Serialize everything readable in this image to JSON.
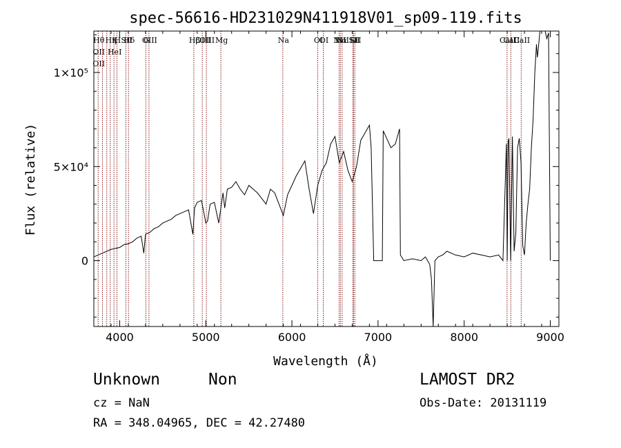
{
  "chart_data": {
    "type": "line",
    "title": "spec-56616-HD231029N411918V01_sp09-119.fits",
    "xlabel": "Wavelength (Å)",
    "ylabel": "Flux (relative)",
    "xlim": [
      3700,
      9100
    ],
    "ylim": [
      -35000,
      122000
    ],
    "x_ticks": [
      4000,
      5000,
      6000,
      7000,
      8000,
      9000
    ],
    "x_tick_labels": [
      "4000",
      "5000",
      "6000",
      "7000",
      "8000",
      "9000"
    ],
    "y_ticks": [
      0,
      50000,
      100000
    ],
    "y_tick_labels": [
      "0",
      "5×10⁴",
      "1×10⁵"
    ],
    "grid": false,
    "series": [
      {
        "line_color": "#000000",
        "x": [
          3700,
          3750,
          3800,
          3850,
          3900,
          3950,
          4000,
          4050,
          4100,
          4150,
          4200,
          4250,
          4280,
          4300,
          4350,
          4400,
          4450,
          4500,
          4550,
          4600,
          4650,
          4700,
          4750,
          4800,
          4850,
          4870,
          4900,
          4950,
          5000,
          5020,
          5050,
          5100,
          5150,
          5200,
          5220,
          5250,
          5300,
          5350,
          5400,
          5450,
          5500,
          5550,
          5600,
          5650,
          5700,
          5750,
          5800,
          5850,
          5900,
          5950,
          6000,
          6050,
          6100,
          6150,
          6200,
          6250,
          6300,
          6350,
          6400,
          6450,
          6500,
          6550,
          6600,
          6650,
          6700,
          6750,
          6800,
          6850,
          6900,
          6920,
          6950,
          6960,
          7050,
          7060,
          7100,
          7150,
          7200,
          7250,
          7260,
          7300,
          7400,
          7500,
          7550,
          7600,
          7620,
          7640,
          7660,
          7700,
          7750,
          7800,
          7900,
          8000,
          8100,
          8200,
          8300,
          8400,
          8450,
          8490,
          8500,
          8510,
          8520,
          8540,
          8560,
          8580,
          8600,
          8620,
          8640,
          8660,
          8680,
          8700,
          8720,
          8740,
          8760,
          8780,
          8800,
          8820,
          8840,
          8850,
          8860,
          8880,
          8900,
          8920,
          8940,
          8960,
          8980,
          9000
        ],
        "y": [
          2000,
          3000,
          4000,
          5000,
          6000,
          6500,
          7000,
          8500,
          9000,
          10000,
          12000,
          13000,
          4000,
          14000,
          15000,
          17000,
          18000,
          20000,
          21000,
          22000,
          24000,
          25000,
          26000,
          27000,
          14000,
          28000,
          31000,
          32000,
          20000,
          21000,
          30000,
          31000,
          20000,
          36000,
          28000,
          38000,
          39000,
          42000,
          38000,
          35000,
          40000,
          38000,
          36000,
          33000,
          30000,
          38000,
          36000,
          30000,
          24000,
          35000,
          40000,
          45000,
          49000,
          53000,
          38000,
          25000,
          40000,
          48000,
          52000,
          62000,
          66000,
          52000,
          58000,
          48000,
          42000,
          50000,
          64000,
          68000,
          72000,
          60000,
          0,
          0,
          0,
          69000,
          65000,
          60000,
          62000,
          70000,
          3000,
          0,
          1000,
          0,
          2000,
          -2000,
          -10000,
          -35000,
          0,
          2000,
          3000,
          5000,
          3000,
          2000,
          4000,
          3000,
          2000,
          3000,
          0,
          62000,
          0,
          63000,
          65000,
          0,
          66000,
          5000,
          15000,
          60000,
          65000,
          52000,
          8000,
          3000,
          20000,
          30000,
          38000,
          60000,
          75000,
          100000,
          115000,
          108000,
          112000,
          125000,
          122000,
          130000,
          125000,
          118000,
          121000,
          0
        ]
      }
    ],
    "annotations": {
      "lines": [
        {
          "x": 3750,
          "labels": [
            "Hθ",
            "OII",
            "OII"
          ]
        },
        {
          "x": 3800,
          "labels": []
        },
        {
          "x": 3850,
          "labels": []
        },
        {
          "x": 3890,
          "labels": [
            "Hη"
          ]
        },
        {
          "x": 3934,
          "labels": [
            "K",
            "HeI"
          ]
        },
        {
          "x": 3968,
          "labels": [
            "H"
          ]
        },
        {
          "x": 4072,
          "labels": [
            "SII"
          ]
        },
        {
          "x": 4102,
          "labels": [
            "Hδ"
          ]
        },
        {
          "x": 4304,
          "labels": [
            "G"
          ]
        },
        {
          "x": 4340,
          "labels": [
            "OIII"
          ]
        },
        {
          "x": 4861,
          "labels": [
            "Hβ"
          ]
        },
        {
          "x": 4959,
          "labels": [
            "OIII"
          ]
        },
        {
          "x": 5007,
          "labels": [
            "OIII"
          ]
        },
        {
          "x": 5175,
          "labels": [
            "Mg"
          ]
        },
        {
          "x": 5894,
          "labels": [
            "Na"
          ]
        },
        {
          "x": 6300,
          "labels": [
            "OI"
          ]
        },
        {
          "x": 6364,
          "labels": [
            "OI"
          ]
        },
        {
          "x": 6548,
          "labels": [
            "NII"
          ]
        },
        {
          "x": 6563,
          "labels": [
            "Hα"
          ]
        },
        {
          "x": 6583,
          "labels": [
            "NII"
          ]
        },
        {
          "x": 6707,
          "labels": [
            "Li"
          ]
        },
        {
          "x": 6716,
          "labels": [
            "SII"
          ]
        },
        {
          "x": 6731,
          "labels": [
            "SII"
          ]
        },
        {
          "x": 8498,
          "labels": [
            "CaII"
          ]
        },
        {
          "x": 8542,
          "labels": [
            "CaII"
          ]
        },
        {
          "x": 8662,
          "labels": [
            "CaII"
          ]
        }
      ],
      "line_color": "#8b1a1a"
    }
  },
  "info": {
    "class": "Unknown",
    "subclass": "Non",
    "cz": "cz = NaN",
    "coords": "RA = 348.04965, DEC =  42.27480",
    "survey": "LAMOST DR2",
    "obs_date": "Obs-Date: 20131119"
  },
  "colors": {
    "axis": "#000000",
    "line": "#000000",
    "marker": "#8b1a1a"
  }
}
